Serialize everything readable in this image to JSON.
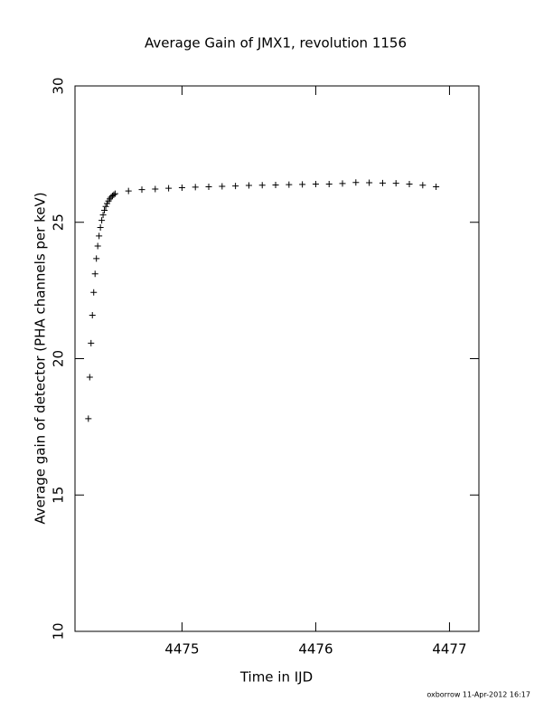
{
  "chart_data": {
    "type": "scatter",
    "title": "Average Gain of JMX1, revolution 1156",
    "x_label": "Time in IJD",
    "y_label": "Average gain of detector (PHA channels per keV)",
    "footer": "oxborrow 11-Apr-2012 16:17",
    "xlim": [
      4474.2,
      4477.22
    ],
    "ylim": [
      10,
      30
    ],
    "xticks": [
      4475,
      4476,
      4477
    ],
    "yticks": [
      10,
      15,
      20,
      25,
      30
    ],
    "marker": "plus",
    "color": "#000000",
    "x": [
      4474.3,
      4474.31,
      4474.32,
      4474.33,
      4474.34,
      4474.35,
      4474.36,
      4474.37,
      4474.38,
      4474.39,
      4474.4,
      4474.41,
      4474.42,
      4474.43,
      4474.44,
      4474.45,
      4474.46,
      4474.47,
      4474.48,
      4474.49,
      4474.5,
      4474.6,
      4474.7,
      4474.8,
      4474.9,
      4475.0,
      4475.1,
      4475.2,
      4475.3,
      4475.4,
      4475.5,
      4475.6,
      4475.7,
      4475.8,
      4475.9,
      4476.0,
      4476.1,
      4476.2,
      4476.3,
      4476.4,
      4476.5,
      4476.6,
      4476.7,
      4476.8,
      4476.9
    ],
    "values": [
      17.8,
      19.32,
      20.57,
      21.59,
      22.43,
      23.11,
      23.67,
      24.13,
      24.5,
      24.81,
      25.07,
      25.27,
      25.44,
      25.58,
      25.69,
      25.78,
      25.86,
      25.92,
      25.97,
      26.01,
      26.05,
      26.15,
      26.2,
      26.22,
      26.25,
      26.27,
      26.29,
      26.3,
      26.32,
      26.33,
      26.35,
      26.36,
      26.37,
      26.38,
      26.39,
      26.4,
      26.4,
      26.42,
      26.46,
      26.45,
      26.44,
      26.43,
      26.4,
      26.36,
      26.3
    ]
  }
}
